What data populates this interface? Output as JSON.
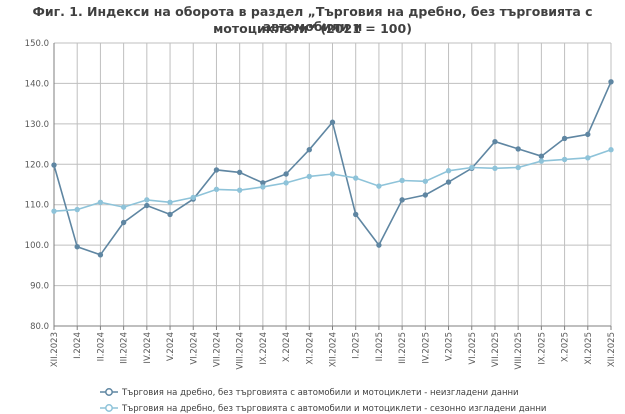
{
  "chart_data": {
    "type": "line",
    "title_line1": "Фиг. 1. Индекси на оборота в раздел „Търговия на дребно, без търговията с автомобили и",
    "title_line2": "мотоциклети“  (2021 = 100)",
    "categories": [
      "XII.2023",
      "I.2024",
      "II.2024",
      "III.2024",
      "IV.2024",
      "V.2024",
      "VI.2024",
      "VII.2024",
      "VIII.2024",
      "IX.2024",
      "X.2024",
      "XI.2024",
      "XII.2024",
      "I.2025",
      "II.2025",
      "III.2025",
      "IV.2025",
      "V.2025",
      "VI.2025",
      "VII.2025",
      "VIII.2025",
      "IX.2025",
      "X.2025",
      "XI.2025",
      "XII.2025"
    ],
    "y_ticks": [
      "80.0",
      "90.0",
      "100.0",
      "110.0",
      "120.0",
      "130.0",
      "140.0",
      "150.0"
    ],
    "ylim": [
      80,
      150
    ],
    "grid": true,
    "legend_position": "bottom",
    "series": [
      {
        "name": "Търговия на дребно, без търговията с автомобили и мотоциклети - неизгладени данни",
        "color": "#5f86a2",
        "values": [
          119.8,
          99.6,
          97.6,
          105.6,
          109.8,
          107.6,
          111.4,
          118.6,
          118.0,
          115.4,
          117.6,
          123.6,
          130.4,
          107.6,
          100.0,
          111.2,
          112.4,
          115.6,
          119.0,
          125.6,
          123.8,
          122.0,
          126.4,
          127.4,
          140.4
        ]
      },
      {
        "name": "Търговия на дребно, без търговията с автомобили и мотоциклети - сезонно изгладени данни",
        "color": "#8ec3d9",
        "values": [
          108.4,
          108.8,
          110.6,
          109.4,
          111.2,
          110.6,
          111.8,
          113.8,
          113.6,
          114.4,
          115.4,
          117.0,
          117.6,
          116.6,
          114.6,
          116.0,
          115.8,
          118.4,
          119.2,
          119.0,
          119.2,
          120.8,
          121.2,
          121.6,
          123.6
        ]
      }
    ]
  }
}
